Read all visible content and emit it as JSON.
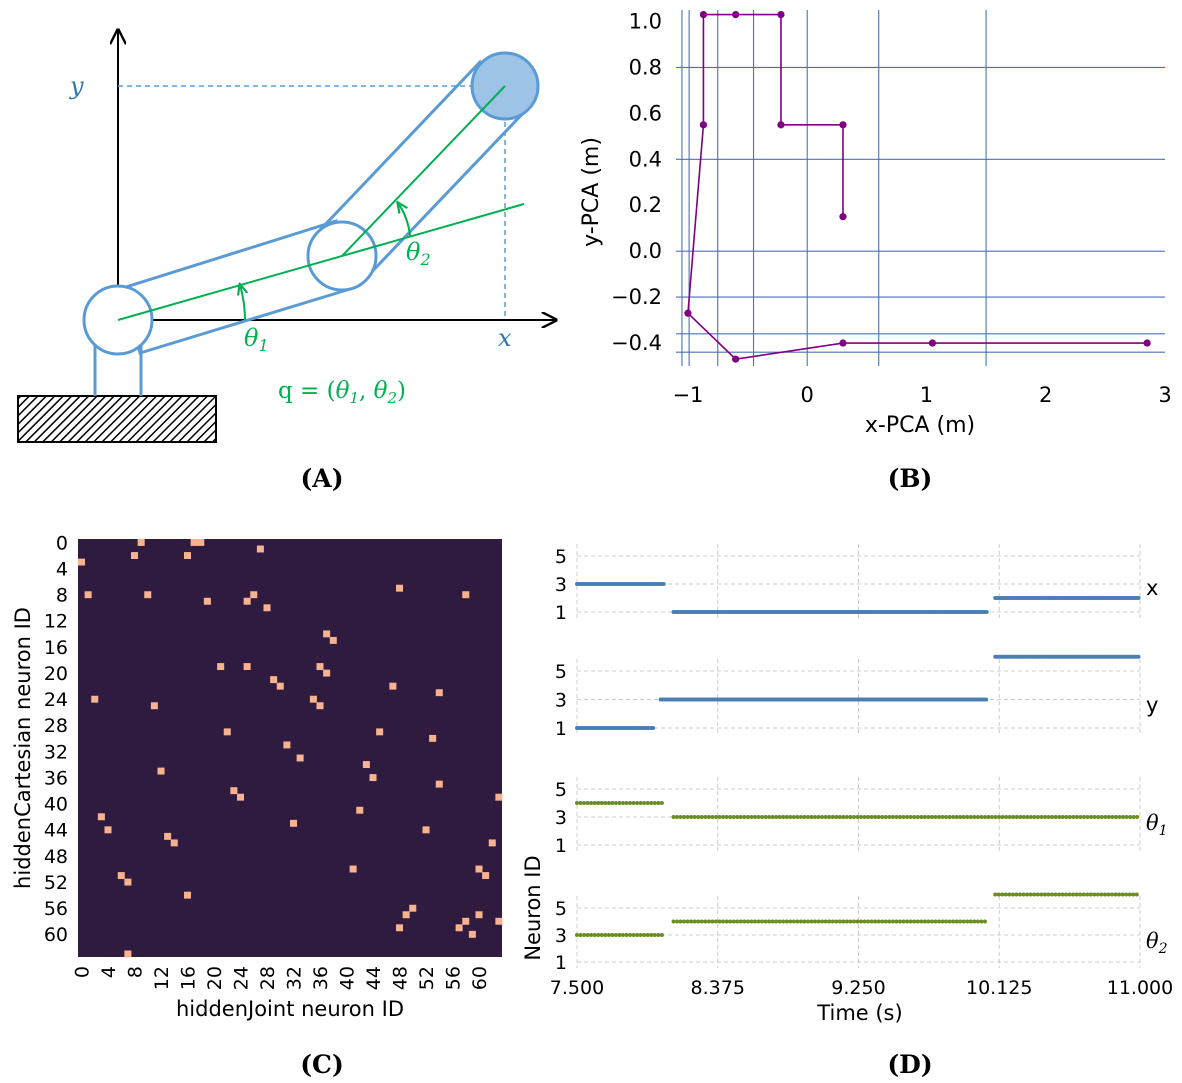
{
  "panel_labels": {
    "a": "(A)",
    "b": "(B)",
    "c": "(C)",
    "d": "(D)"
  },
  "colors": {
    "arm_blue": "#5b9bd5",
    "angle_green": "#00b050",
    "trajectory_purple": "#800080",
    "grid_blue": "#4c72b0",
    "heat_background": "#2f1b3f",
    "heat_active": "#f7b28f",
    "spike_blue": "#4a7fb5",
    "spike_green": "#6b8e23"
  },
  "diagram": {
    "y_label": "y",
    "x_label": "x",
    "theta1_label": "θ",
    "theta1_sub": "1",
    "theta2_label": "θ",
    "theta2_sub": "2",
    "q_prefix": "q = (",
    "q_theta": "θ",
    "q_sub1": "1",
    "q_comma": ", ",
    "q_sub2": "2",
    "q_suffix": ")"
  },
  "chart_data": [
    {
      "id": "B",
      "type": "line",
      "xlabel": "x-PCA (m)",
      "ylabel": "y-PCA (m)",
      "xlim": [
        -1.1,
        3.0
      ],
      "ylim": [
        -0.5,
        1.05
      ],
      "xticks": [
        -1,
        0,
        1,
        2,
        3
      ],
      "xtick_labels": [
        "−1",
        "0",
        "1",
        "2",
        "3"
      ],
      "yticks": [
        1.0,
        0.8,
        0.6,
        0.4,
        0.2,
        0.0,
        -0.2,
        -0.4
      ],
      "ytick_labels": [
        "1.0",
        "0.8",
        "0.6",
        "0.4",
        "0.2",
        "0.0",
        "−0.2",
        "−0.4"
      ],
      "grid_x": [
        -1.05,
        -0.99,
        -0.75,
        -0.45,
        0.0,
        0.6,
        1.5
      ],
      "grid_y": [
        0.8,
        0.4,
        0.0,
        -0.2,
        -0.36,
        -0.44
      ],
      "points": [
        [
          2.85,
          -0.4
        ],
        [
          1.05,
          -0.4
        ],
        [
          0.3,
          -0.4
        ],
        [
          -0.6,
          -0.47
        ],
        [
          -1.0,
          -0.27
        ],
        [
          -0.87,
          0.55
        ],
        [
          -0.87,
          1.03
        ],
        [
          -0.6,
          1.03
        ],
        [
          -0.22,
          1.03
        ],
        [
          -0.22,
          0.55
        ],
        [
          0.3,
          0.55
        ],
        [
          0.3,
          0.15
        ]
      ]
    },
    {
      "id": "C",
      "type": "heatmap",
      "xlabel": "hiddenJoint neuron ID",
      "ylabel": "hiddenCartesian neuron ID",
      "size": 64,
      "xtick_labels": [
        "0",
        "4",
        "8",
        "12",
        "16",
        "20",
        "24",
        "28",
        "32",
        "36",
        "40",
        "44",
        "48",
        "52",
        "56",
        "60"
      ],
      "ytick_labels": [
        "0",
        "4",
        "8",
        "12",
        "16",
        "20",
        "24",
        "28",
        "32",
        "36",
        "40",
        "44",
        "48",
        "52",
        "56",
        "60"
      ],
      "active_cells": [
        [
          9,
          0
        ],
        [
          17,
          0
        ],
        [
          18,
          0
        ],
        [
          27,
          1
        ],
        [
          8,
          2
        ],
        [
          16,
          2
        ],
        [
          0,
          3
        ],
        [
          48,
          7
        ],
        [
          1,
          8
        ],
        [
          10,
          8
        ],
        [
          58,
          8
        ],
        [
          19,
          9
        ],
        [
          25,
          9
        ],
        [
          26,
          8
        ],
        [
          28,
          10
        ],
        [
          37,
          14
        ],
        [
          38,
          15
        ],
        [
          21,
          19
        ],
        [
          25,
          19
        ],
        [
          36,
          19
        ],
        [
          37,
          20
        ],
        [
          29,
          21
        ],
        [
          30,
          22
        ],
        [
          47,
          22
        ],
        [
          2,
          24
        ],
        [
          35,
          24
        ],
        [
          36,
          25
        ],
        [
          54,
          23
        ],
        [
          11,
          25
        ],
        [
          22,
          29
        ],
        [
          45,
          29
        ],
        [
          31,
          31
        ],
        [
          33,
          33
        ],
        [
          53,
          30
        ],
        [
          12,
          35
        ],
        [
          43,
          34
        ],
        [
          44,
          36
        ],
        [
          54,
          37
        ],
        [
          23,
          38
        ],
        [
          24,
          39
        ],
        [
          63,
          39
        ],
        [
          42,
          41
        ],
        [
          3,
          42
        ],
        [
          4,
          44
        ],
        [
          32,
          43
        ],
        [
          52,
          44
        ],
        [
          13,
          45
        ],
        [
          14,
          46
        ],
        [
          62,
          46
        ],
        [
          41,
          50
        ],
        [
          61,
          51
        ],
        [
          60,
          50
        ],
        [
          6,
          51
        ],
        [
          7,
          52
        ],
        [
          16,
          54
        ],
        [
          49,
          57
        ],
        [
          50,
          56
        ],
        [
          48,
          59
        ],
        [
          57,
          59
        ],
        [
          58,
          58
        ],
        [
          60,
          57
        ],
        [
          59,
          60
        ],
        [
          63,
          58
        ],
        [
          7,
          63
        ]
      ]
    },
    {
      "id": "D",
      "type": "scatter",
      "xlabel": "Time (s)",
      "ylabel": "Neuron ID",
      "xlim": [
        7.5,
        11.0
      ],
      "xticks": [
        7.5,
        8.375,
        9.25,
        10.125,
        11.0
      ],
      "xtick_labels": [
        "7.500",
        "8.375",
        "9.250",
        "10.125",
        "11.000"
      ],
      "ylim": [
        1,
        5
      ],
      "ytick_labels": [
        "5",
        "3",
        "1"
      ],
      "series": [
        {
          "name": "x",
          "color": "#4a7fb5",
          "segments": [
            [
              7.5,
              8.05,
              3
            ],
            [
              8.1,
              10.05,
              1
            ],
            [
              10.1,
              11.0,
              2
            ]
          ]
        },
        {
          "name": "y",
          "color": "#4a7fb5",
          "segments": [
            [
              7.5,
              7.98,
              1
            ],
            [
              8.02,
              10.05,
              3
            ],
            [
              10.1,
              11.0,
              6
            ]
          ]
        },
        {
          "name": "θ",
          "name_sub": "1",
          "color": "#6b8e23",
          "segments": [
            [
              7.5,
              8.05,
              4
            ],
            [
              8.1,
              11.0,
              3
            ]
          ]
        },
        {
          "name": "θ",
          "name_sub": "2",
          "color": "#6b8e23",
          "segments": [
            [
              7.5,
              8.05,
              3
            ],
            [
              8.1,
              10.05,
              4
            ],
            [
              10.1,
              11.0,
              6
            ]
          ]
        }
      ]
    }
  ]
}
